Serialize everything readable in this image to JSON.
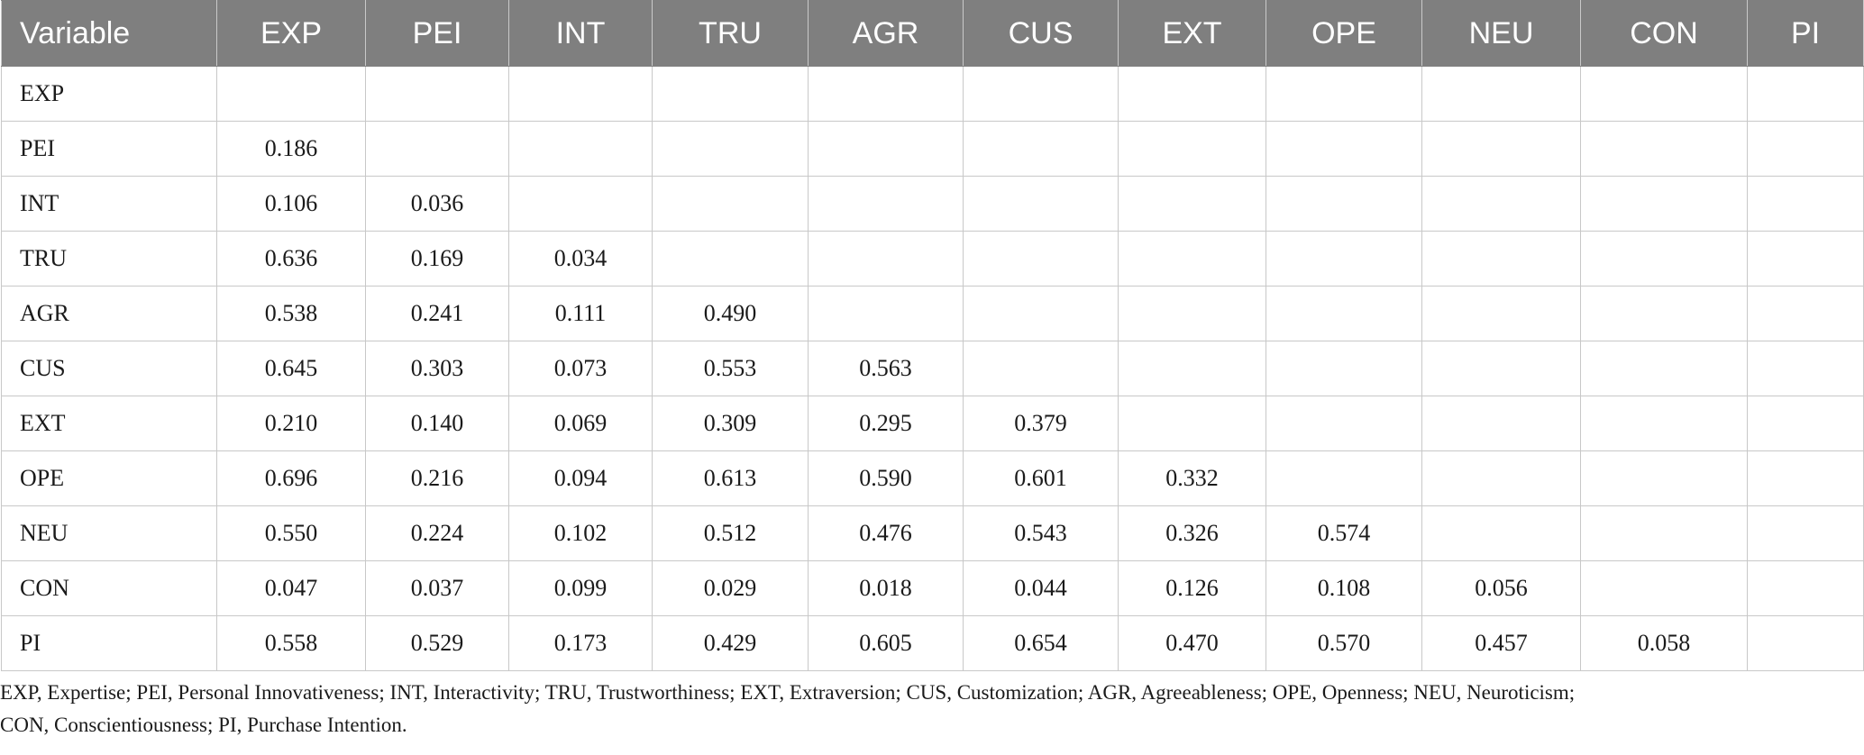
{
  "table": {
    "headers": [
      "Variable",
      "EXP",
      "PEI",
      "INT",
      "TRU",
      "AGR",
      "CUS",
      "EXT",
      "OPE",
      "NEU",
      "CON",
      "PI"
    ],
    "rows": [
      {
        "label": "EXP",
        "values": [
          "",
          "",
          "",
          "",
          "",
          "",
          "",
          "",
          "",
          "",
          ""
        ]
      },
      {
        "label": "PEI",
        "values": [
          "0.186",
          "",
          "",
          "",
          "",
          "",
          "",
          "",
          "",
          "",
          ""
        ]
      },
      {
        "label": "INT",
        "values": [
          "0.106",
          "0.036",
          "",
          "",
          "",
          "",
          "",
          "",
          "",
          "",
          ""
        ]
      },
      {
        "label": "TRU",
        "values": [
          "0.636",
          "0.169",
          "0.034",
          "",
          "",
          "",
          "",
          "",
          "",
          "",
          ""
        ]
      },
      {
        "label": "AGR",
        "values": [
          "0.538",
          "0.241",
          "0.111",
          "0.490",
          "",
          "",
          "",
          "",
          "",
          "",
          ""
        ]
      },
      {
        "label": "CUS",
        "values": [
          "0.645",
          "0.303",
          "0.073",
          "0.553",
          "0.563",
          "",
          "",
          "",
          "",
          "",
          ""
        ]
      },
      {
        "label": "EXT",
        "values": [
          "0.210",
          "0.140",
          "0.069",
          "0.309",
          "0.295",
          "0.379",
          "",
          "",
          "",
          "",
          ""
        ]
      },
      {
        "label": "OPE",
        "values": [
          "0.696",
          "0.216",
          "0.094",
          "0.613",
          "0.590",
          "0.601",
          "0.332",
          "",
          "",
          "",
          ""
        ]
      },
      {
        "label": "NEU",
        "values": [
          "0.550",
          "0.224",
          "0.102",
          "0.512",
          "0.476",
          "0.543",
          "0.326",
          "0.574",
          "",
          "",
          ""
        ]
      },
      {
        "label": "CON",
        "values": [
          "0.047",
          "0.037",
          "0.099",
          "0.029",
          "0.018",
          "0.044",
          "0.126",
          "0.108",
          "0.056",
          "",
          ""
        ]
      },
      {
        "label": "PI",
        "values": [
          "0.558",
          "0.529",
          "0.173",
          "0.429",
          "0.605",
          "0.654",
          "0.470",
          "0.570",
          "0.457",
          "0.058",
          ""
        ]
      }
    ]
  },
  "footnote": {
    "line1": "EXP, Expertise; PEI, Personal Innovativeness; INT, Interactivity; TRU, Trustworthiness; EXT, Extraversion; CUS, Customization; AGR, Agreeableness; OPE, Openness; NEU, Neuroticism;",
    "line2": "CON, Conscientiousness; PI, Purchase Intention."
  },
  "colors": {
    "header_bg": "#7f7f7f",
    "header_text": "#ffffff",
    "grid": "#c8c8c8"
  }
}
